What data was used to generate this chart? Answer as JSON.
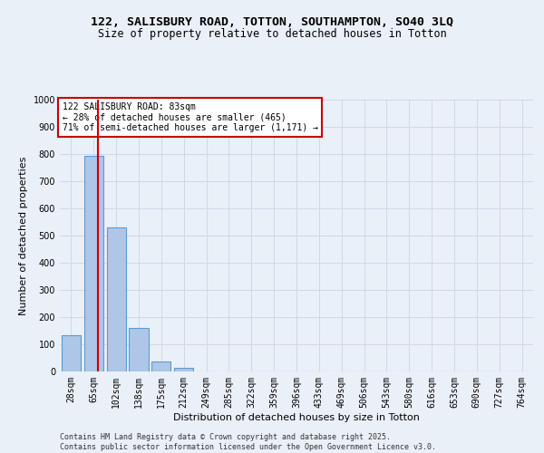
{
  "title": "122, SALISBURY ROAD, TOTTON, SOUTHAMPTON, SO40 3LQ",
  "subtitle": "Size of property relative to detached houses in Totton",
  "xlabel": "Distribution of detached houses by size in Totton",
  "ylabel": "Number of detached properties",
  "categories": [
    "28sqm",
    "65sqm",
    "102sqm",
    "138sqm",
    "175sqm",
    "212sqm",
    "249sqm",
    "285sqm",
    "322sqm",
    "359sqm",
    "396sqm",
    "433sqm",
    "469sqm",
    "506sqm",
    "543sqm",
    "580sqm",
    "616sqm",
    "653sqm",
    "690sqm",
    "727sqm",
    "764sqm"
  ],
  "values": [
    135,
    795,
    530,
    160,
    37,
    12,
    0,
    0,
    0,
    0,
    0,
    0,
    0,
    0,
    0,
    0,
    0,
    0,
    0,
    0,
    0
  ],
  "bar_color": "#aec6e8",
  "bar_edge_color": "#5b9bd5",
  "vline_color": "#cc0000",
  "vline_pos": 1.18,
  "annotation_text": "122 SALISBURY ROAD: 83sqm\n← 28% of detached houses are smaller (465)\n71% of semi-detached houses are larger (1,171) →",
  "annotation_box_color": "#ffffff",
  "annotation_box_edge_color": "#cc0000",
  "ylim": [
    0,
    1000
  ],
  "yticks": [
    0,
    100,
    200,
    300,
    400,
    500,
    600,
    700,
    800,
    900,
    1000
  ],
  "grid_color": "#d0d8e8",
  "background_color": "#eaf0f8",
  "footer_line1": "Contains HM Land Registry data © Crown copyright and database right 2025.",
  "footer_line2": "Contains public sector information licensed under the Open Government Licence v3.0.",
  "title_fontsize": 9.5,
  "subtitle_fontsize": 8.5,
  "axis_label_fontsize": 8,
  "tick_fontsize": 7,
  "annotation_fontsize": 7,
  "footer_fontsize": 6
}
